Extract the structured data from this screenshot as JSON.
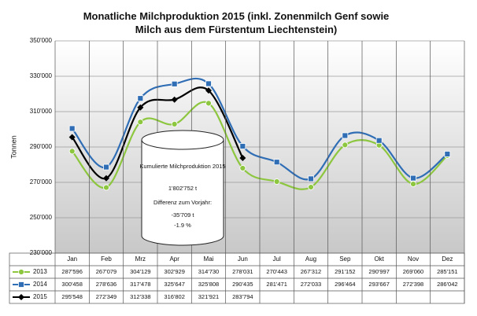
{
  "chart_data": {
    "type": "line",
    "title": "Monatliche Milchproduktion 2015 (inkl. Zonenmilch Genf sowie Milch aus dem Fürstentum Liechtenstein)",
    "ylabel": "Tonnen",
    "categories": [
      "Jan",
      "Feb",
      "Mrz",
      "Apr",
      "Mai",
      "Jun",
      "Jul",
      "Aug",
      "Sep",
      "Okt",
      "Nov",
      "Dez"
    ],
    "ylim": [
      230000,
      350000
    ],
    "yticks": [
      {
        "value": 230000,
        "label": "230'000"
      },
      {
        "value": 250000,
        "label": "250'000"
      },
      {
        "value": 270000,
        "label": "270'000"
      },
      {
        "value": 290000,
        "label": "290'000"
      },
      {
        "value": 310000,
        "label": "310'000"
      },
      {
        "value": 330000,
        "label": "330'000"
      },
      {
        "value": 350000,
        "label": "350'000"
      }
    ],
    "grid": true,
    "series": [
      {
        "name": "2013",
        "color": "#8dc63f",
        "marker": "circle",
        "values": [
          287596,
          267079,
          304129,
          302929,
          314730,
          278031,
          270443,
          267312,
          291152,
          290997,
          269060,
          285151
        ],
        "value_labels": [
          "287'596",
          "267'079",
          "304'129",
          "302'929",
          "314'730",
          "278'031",
          "270'443",
          "267'312",
          "291'152",
          "290'997",
          "269'060",
          "285'151"
        ]
      },
      {
        "name": "2014",
        "color": "#2f6db5",
        "marker": "square",
        "values": [
          300458,
          278636,
          317478,
          325647,
          325808,
          290435,
          281471,
          272033,
          296464,
          293667,
          272398,
          286042
        ],
        "value_labels": [
          "300'458",
          "278'636",
          "317'478",
          "325'647",
          "325'808",
          "290'435",
          "281'471",
          "272'033",
          "296'464",
          "293'667",
          "272'398",
          "286'042"
        ]
      },
      {
        "name": "2015",
        "color": "#000000",
        "marker": "diamond",
        "values": [
          295548,
          272349,
          312338,
          316802,
          321921,
          283794,
          null,
          null,
          null,
          null,
          null,
          null
        ],
        "value_labels": [
          "295'548",
          "272'349",
          "312'338",
          "316'802",
          "321'921",
          "283'794",
          null,
          null,
          null,
          null,
          null,
          null
        ]
      }
    ],
    "annotations": [
      "Kumulierte Milchproduktion 2015",
      "1'802'752 t",
      "Differenz zum Vorjahr:",
      "-35'709 t",
      "-1.9 %"
    ]
  }
}
